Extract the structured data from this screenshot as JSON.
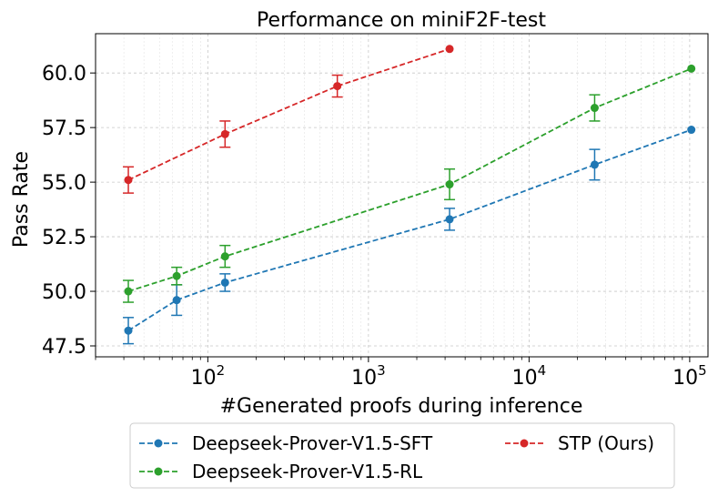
{
  "chart_data": {
    "type": "line",
    "title": "Performance on miniF2F-test",
    "xlabel": "#Generated proofs during inference",
    "ylabel": "Pass Rate",
    "xscale": "log",
    "xlim": [
      20,
      130000
    ],
    "ylim": [
      47.0,
      61.8
    ],
    "grid": true,
    "legend_position": "bottom-center-outside",
    "x_ticks": [
      {
        "value": 100,
        "base": "10",
        "exp": "2"
      },
      {
        "value": 1000,
        "base": "10",
        "exp": "3"
      },
      {
        "value": 10000,
        "base": "10",
        "exp": "4"
      },
      {
        "value": 100000,
        "base": "10",
        "exp": "5"
      }
    ],
    "y_ticks": [
      {
        "value": 47.5,
        "label": "47.5"
      },
      {
        "value": 50.0,
        "label": "50.0"
      },
      {
        "value": 52.5,
        "label": "52.5"
      },
      {
        "value": 55.0,
        "label": "55.0"
      },
      {
        "value": 57.5,
        "label": "57.5"
      },
      {
        "value": 60.0,
        "label": "60.0"
      }
    ],
    "series": [
      {
        "name": "Deepseek-Prover-V1.5-SFT",
        "color": "#1f77b4",
        "x": [
          32,
          64,
          128,
          3200,
          25600,
          102400
        ],
        "y": [
          48.2,
          49.6,
          50.4,
          53.3,
          55.8,
          57.4
        ],
        "err": [
          0.6,
          0.7,
          0.4,
          0.5,
          0.7,
          null
        ]
      },
      {
        "name": "Deepseek-Prover-V1.5-RL",
        "color": "#2ca02c",
        "x": [
          32,
          64,
          128,
          3200,
          25600,
          102400
        ],
        "y": [
          50.0,
          50.7,
          51.6,
          54.9,
          58.4,
          60.2
        ],
        "err": [
          0.5,
          0.4,
          0.5,
          0.7,
          0.6,
          null
        ]
      },
      {
        "name": "STP (Ours)",
        "color": "#d62728",
        "x": [
          32,
          128,
          640,
          3200
        ],
        "y": [
          55.1,
          57.2,
          59.4,
          61.1
        ],
        "err": [
          0.6,
          0.6,
          0.5,
          null
        ]
      }
    ]
  }
}
